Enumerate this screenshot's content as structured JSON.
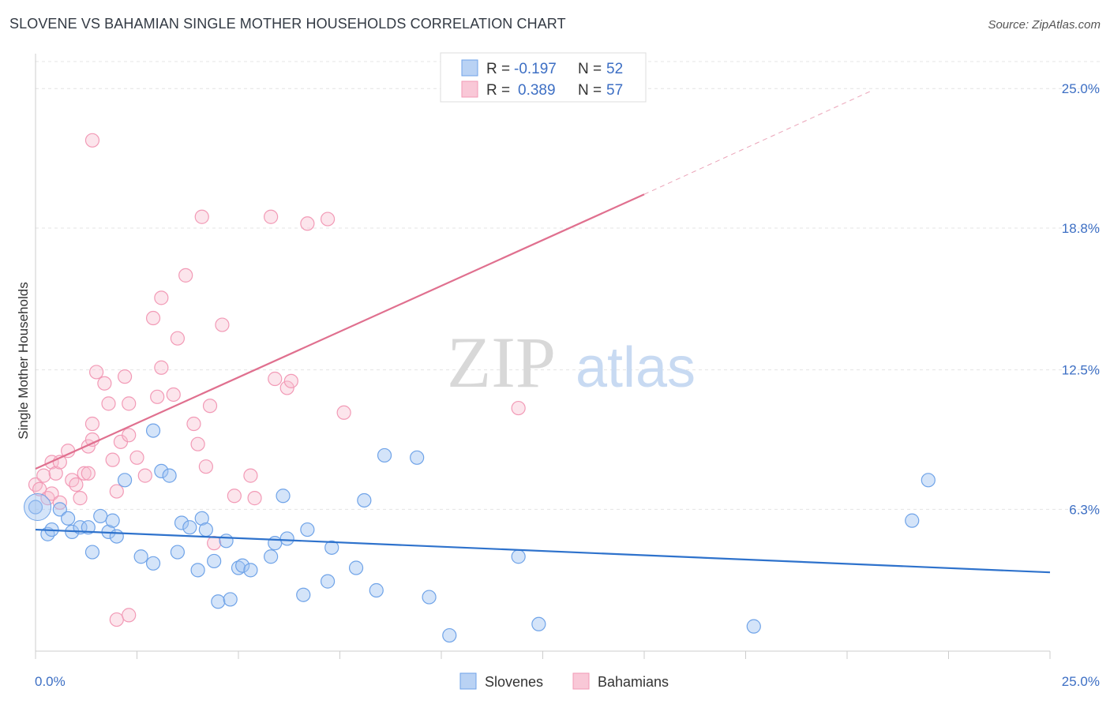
{
  "title": "SLOVENE VS BAHAMIAN SINGLE MOTHER HOUSEHOLDS CORRELATION CHART",
  "source": "Source: ZipAtlas.com",
  "watermark": {
    "zip": "ZIP",
    "atlas": "atlas"
  },
  "colors": {
    "slovenes": "#6fa3e8",
    "bahamians": "#f29ab6",
    "slovenes_line": "#2e72cc",
    "bahamians_line": "#e0708f",
    "tick_label": "#3d6fc4"
  },
  "legend": {
    "rows": [
      {
        "r_label": "R = ",
        "r_value": "-0.197",
        "n_label": "N = ",
        "n_value": "52"
      },
      {
        "r_label": "R = ",
        "r_value": "0.389",
        "n_label": "N = ",
        "n_value": "57"
      }
    ],
    "bottom": [
      "Slovenes",
      "Bahamians"
    ]
  },
  "chart_data": {
    "type": "scatter",
    "title": "SLOVENE VS BAHAMIAN SINGLE MOTHER HOUSEHOLDS CORRELATION CHART",
    "xlabel": "",
    "ylabel": "Single Mother Households",
    "xlim": [
      0,
      25
    ],
    "ylim": [
      0,
      26.2
    ],
    "x_tick_labels": [
      "0.0%",
      "25.0%"
    ],
    "y_ticks": [
      6.3,
      12.5,
      18.8,
      25.0
    ],
    "y_tick_labels": [
      "6.3%",
      "12.5%",
      "18.8%",
      "25.0%"
    ],
    "grid": true,
    "legend_position": "top-center",
    "series": [
      {
        "name": "Slovenes",
        "trend": {
          "x": [
            0,
            25
          ],
          "y": [
            5.4,
            3.5
          ]
        },
        "points": [
          [
            0.0,
            6.4
          ],
          [
            0.3,
            5.2
          ],
          [
            0.4,
            5.4
          ],
          [
            0.6,
            6.3
          ],
          [
            0.8,
            5.9
          ],
          [
            0.9,
            5.3
          ],
          [
            1.1,
            5.5
          ],
          [
            1.3,
            5.5
          ],
          [
            1.4,
            4.4
          ],
          [
            1.6,
            6.0
          ],
          [
            1.8,
            5.3
          ],
          [
            1.9,
            5.8
          ],
          [
            2.0,
            5.1
          ],
          [
            2.2,
            7.6
          ],
          [
            2.6,
            4.2
          ],
          [
            2.9,
            3.9
          ],
          [
            2.9,
            9.8
          ],
          [
            3.1,
            8.0
          ],
          [
            3.3,
            7.8
          ],
          [
            3.5,
            4.4
          ],
          [
            3.6,
            5.7
          ],
          [
            3.8,
            5.5
          ],
          [
            4.0,
            3.6
          ],
          [
            4.1,
            5.9
          ],
          [
            4.2,
            5.4
          ],
          [
            4.4,
            4.0
          ],
          [
            4.5,
            2.2
          ],
          [
            4.7,
            4.9
          ],
          [
            4.8,
            2.3
          ],
          [
            5.0,
            3.7
          ],
          [
            5.1,
            3.8
          ],
          [
            5.3,
            3.6
          ],
          [
            5.8,
            4.2
          ],
          [
            5.9,
            4.8
          ],
          [
            6.1,
            6.9
          ],
          [
            6.2,
            5.0
          ],
          [
            6.6,
            2.5
          ],
          [
            6.7,
            5.4
          ],
          [
            7.2,
            3.1
          ],
          [
            7.3,
            4.6
          ],
          [
            7.9,
            3.7
          ],
          [
            8.1,
            6.7
          ],
          [
            8.4,
            2.7
          ],
          [
            8.6,
            8.7
          ],
          [
            9.4,
            8.6
          ],
          [
            9.7,
            2.4
          ],
          [
            10.2,
            0.7
          ],
          [
            11.9,
            4.2
          ],
          [
            12.4,
            1.2
          ],
          [
            17.7,
            1.1
          ],
          [
            21.6,
            5.8
          ],
          [
            22.0,
            7.6
          ]
        ]
      },
      {
        "name": "Bahamians",
        "trend": {
          "x": [
            0,
            15
          ],
          "y": [
            8.1,
            20.3
          ]
        },
        "trend_extended": {
          "x": [
            15,
            20.6
          ],
          "y": [
            20.3,
            24.9
          ]
        },
        "points": [
          [
            0.0,
            7.4
          ],
          [
            0.1,
            7.2
          ],
          [
            0.2,
            7.8
          ],
          [
            0.3,
            6.8
          ],
          [
            0.4,
            7.0
          ],
          [
            0.4,
            8.4
          ],
          [
            0.5,
            7.9
          ],
          [
            0.6,
            6.6
          ],
          [
            0.6,
            8.4
          ],
          [
            0.8,
            8.9
          ],
          [
            0.9,
            7.6
          ],
          [
            1.0,
            7.4
          ],
          [
            1.1,
            6.8
          ],
          [
            1.2,
            7.9
          ],
          [
            1.3,
            7.9
          ],
          [
            1.3,
            9.1
          ],
          [
            1.4,
            9.4
          ],
          [
            1.4,
            10.1
          ],
          [
            1.5,
            12.4
          ],
          [
            1.7,
            11.9
          ],
          [
            1.8,
            11.0
          ],
          [
            1.9,
            8.5
          ],
          [
            2.0,
            7.1
          ],
          [
            2.1,
            9.3
          ],
          [
            2.2,
            12.2
          ],
          [
            2.3,
            11.0
          ],
          [
            2.3,
            9.6
          ],
          [
            2.5,
            8.6
          ],
          [
            2.7,
            7.8
          ],
          [
            2.9,
            14.8
          ],
          [
            3.0,
            11.3
          ],
          [
            3.1,
            15.7
          ],
          [
            3.1,
            12.6
          ],
          [
            3.4,
            11.4
          ],
          [
            3.5,
            13.9
          ],
          [
            3.7,
            16.7
          ],
          [
            3.9,
            10.1
          ],
          [
            4.0,
            9.2
          ],
          [
            4.2,
            8.2
          ],
          [
            4.3,
            10.9
          ],
          [
            4.4,
            4.8
          ],
          [
            4.6,
            14.5
          ],
          [
            4.9,
            6.9
          ],
          [
            5.3,
            7.8
          ],
          [
            5.4,
            6.8
          ],
          [
            5.8,
            19.3
          ],
          [
            6.2,
            11.7
          ],
          [
            6.3,
            12.0
          ],
          [
            6.7,
            19.0
          ],
          [
            7.2,
            19.2
          ],
          [
            7.6,
            10.6
          ],
          [
            11.9,
            10.8
          ],
          [
            2.0,
            1.4
          ],
          [
            2.3,
            1.6
          ],
          [
            1.4,
            22.7
          ],
          [
            4.1,
            19.3
          ],
          [
            5.9,
            12.1
          ]
        ]
      }
    ]
  }
}
